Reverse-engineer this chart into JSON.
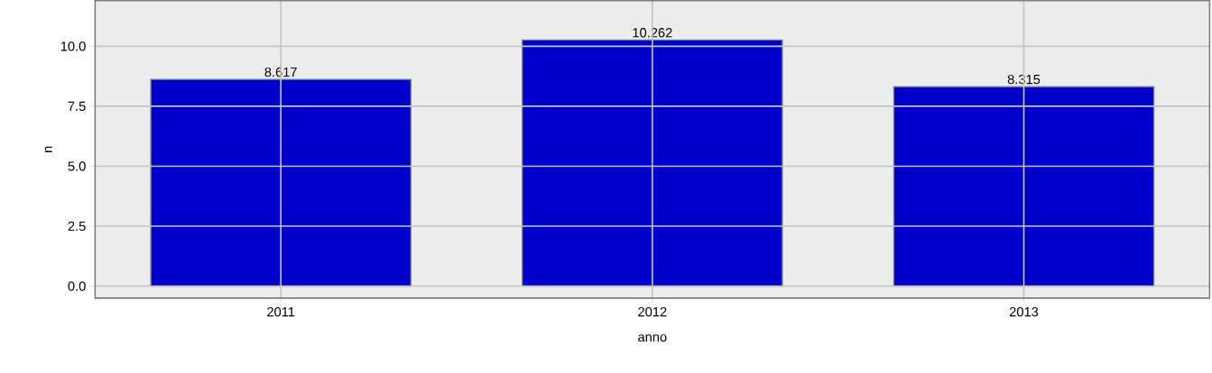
{
  "chart_data": {
    "type": "bar",
    "xlabel": "anno",
    "ylabel": "n",
    "categories": [
      "2011",
      "2012",
      "2013"
    ],
    "values": [
      8.617,
      10.262,
      8.315
    ],
    "value_labels": [
      "8.617",
      "10.262",
      "8.315"
    ],
    "color": "#0000cc",
    "ylim": [
      -0.5,
      11.9
    ],
    "yticks": [
      {
        "value": 0,
        "label": "0.0"
      },
      {
        "value": 2.5,
        "label": "2.5"
      },
      {
        "value": 5,
        "label": "5.0"
      },
      {
        "value": 7.5,
        "label": "7.5"
      },
      {
        "value": 10,
        "label": "10.0"
      }
    ],
    "grid": true
  }
}
